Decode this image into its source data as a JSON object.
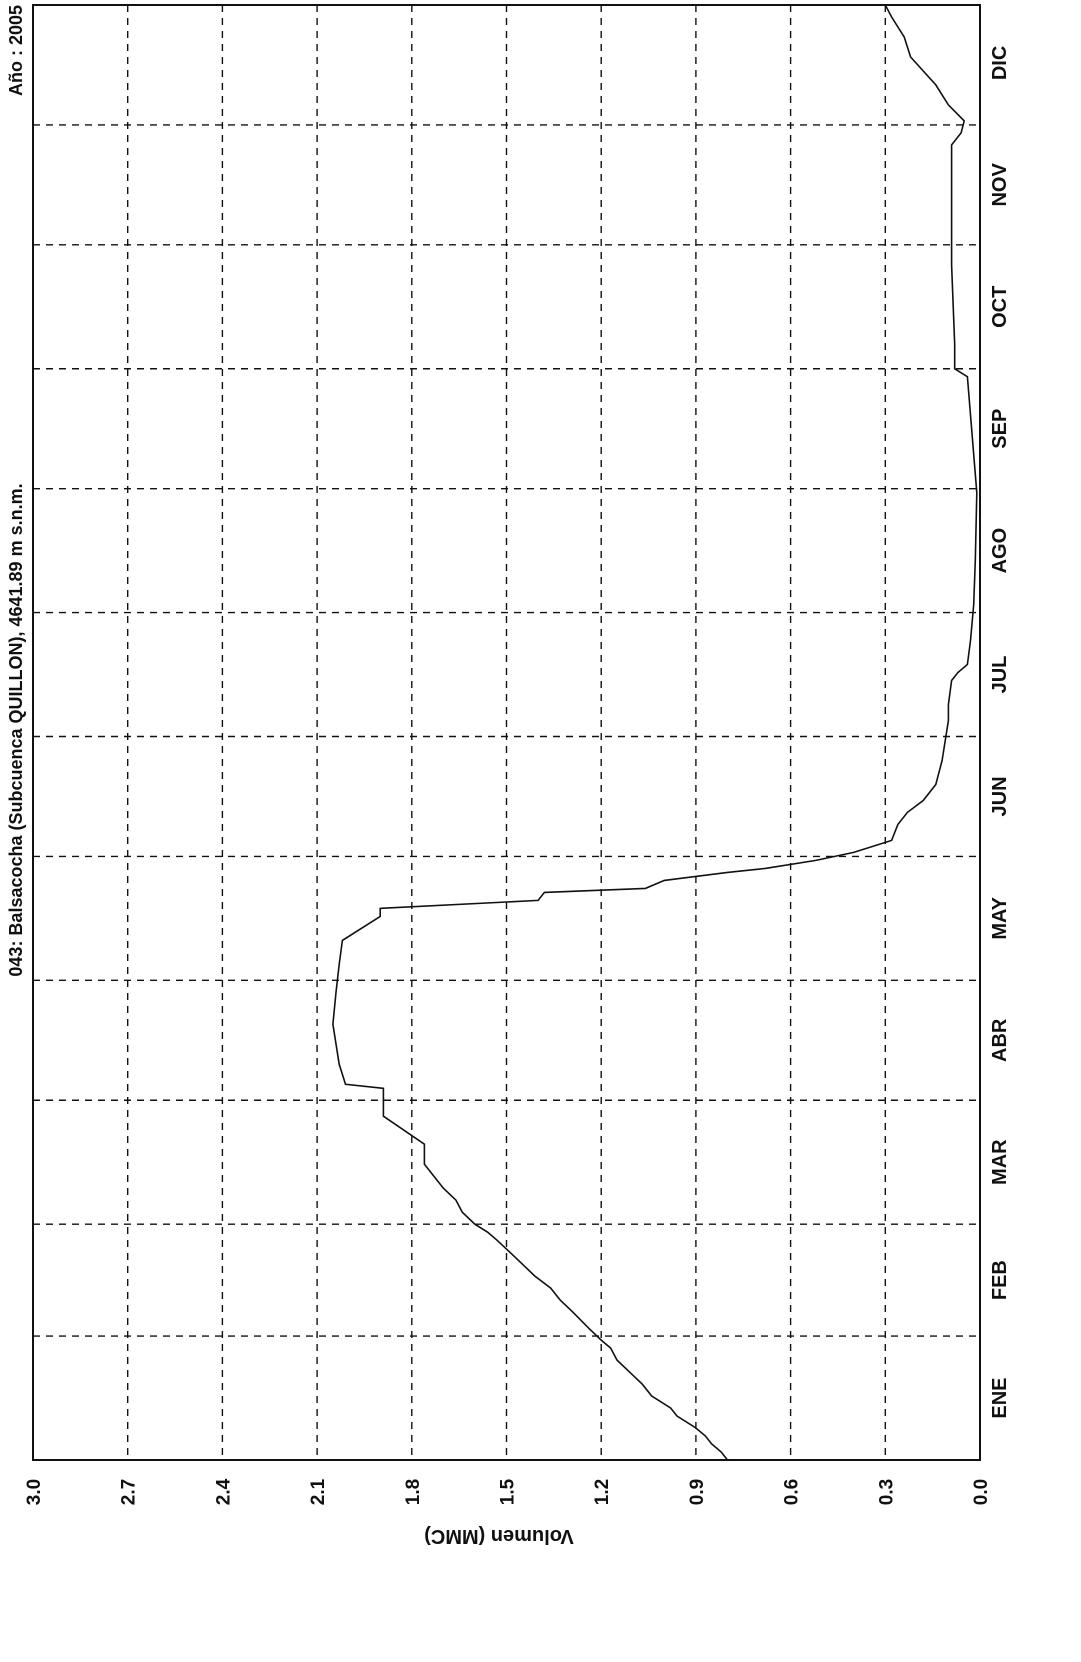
{
  "chart_data": {
    "type": "line",
    "title": "043: Balsacocha (Subcuenca QUILLON),  4641.89 m s.n.m.",
    "year_label": "Año :  2005",
    "ylabel": "Volumen  (MMC)",
    "xlabel": "",
    "ylim": [
      0.0,
      3.0
    ],
    "y_ticks": [
      "0.0",
      "0.3",
      "0.6",
      "0.9",
      "1.2",
      "1.5",
      "1.8",
      "2.1",
      "2.4",
      "2.7",
      "3.0"
    ],
    "categories": [
      "ENE",
      "FEB",
      "MAR",
      "ABR",
      "MAY",
      "JUN",
      "JUL",
      "AGO",
      "SEP",
      "OCT",
      "NOV",
      "DIC"
    ],
    "x_unit": "day of year",
    "xlim": [
      1,
      365
    ],
    "grid": true,
    "series": [
      {
        "points": [
          [
            1,
            0.8
          ],
          [
            3,
            0.82
          ],
          [
            5,
            0.85
          ],
          [
            7,
            0.87
          ],
          [
            9,
            0.9
          ],
          [
            12,
            0.96
          ],
          [
            14,
            0.98
          ],
          [
            17,
            1.04
          ],
          [
            20,
            1.07
          ],
          [
            23,
            1.11
          ],
          [
            26,
            1.15
          ],
          [
            29,
            1.17
          ],
          [
            31,
            1.2
          ],
          [
            34,
            1.24
          ],
          [
            38,
            1.29
          ],
          [
            41,
            1.33
          ],
          [
            44,
            1.36
          ],
          [
            47,
            1.41
          ],
          [
            50,
            1.45
          ],
          [
            53,
            1.49
          ],
          [
            56,
            1.53
          ],
          [
            58,
            1.56
          ],
          [
            60,
            1.6
          ],
          [
            63,
            1.64
          ],
          [
            66,
            1.66
          ],
          [
            69,
            1.7
          ],
          [
            72,
            1.73
          ],
          [
            75,
            1.76
          ],
          [
            80,
            1.76
          ],
          [
            87,
            1.89
          ],
          [
            94,
            1.89
          ],
          [
            95,
            2.01
          ],
          [
            100,
            2.03
          ],
          [
            110,
            2.05
          ],
          [
            118,
            2.04
          ],
          [
            125,
            2.03
          ],
          [
            131,
            2.02
          ],
          [
            135,
            1.94
          ],
          [
            137,
            1.9
          ],
          [
            139,
            1.9
          ],
          [
            141,
            1.4
          ],
          [
            143,
            1.38
          ],
          [
            144,
            1.06
          ],
          [
            146,
            1.0
          ],
          [
            148,
            0.8
          ],
          [
            149,
            0.68
          ],
          [
            151,
            0.52
          ],
          [
            153,
            0.4
          ],
          [
            156,
            0.28
          ],
          [
            160,
            0.26
          ],
          [
            163,
            0.23
          ],
          [
            166,
            0.18
          ],
          [
            170,
            0.14
          ],
          [
            176,
            0.12
          ],
          [
            186,
            0.1
          ],
          [
            190,
            0.1
          ],
          [
            196,
            0.09
          ],
          [
            198,
            0.07
          ],
          [
            200,
            0.04
          ],
          [
            206,
            0.03
          ],
          [
            215,
            0.02
          ],
          [
            226,
            0.015
          ],
          [
            243,
            0.01
          ],
          [
            272,
            0.04
          ],
          [
            274,
            0.08
          ],
          [
            280,
            0.08
          ],
          [
            300,
            0.09
          ],
          [
            320,
            0.09
          ],
          [
            330,
            0.09
          ],
          [
            333,
            0.06
          ],
          [
            336,
            0.05
          ],
          [
            340,
            0.1
          ],
          [
            345,
            0.14
          ],
          [
            352,
            0.22
          ],
          [
            357,
            0.24
          ],
          [
            362,
            0.28
          ],
          [
            365,
            0.3
          ]
        ]
      }
    ]
  }
}
